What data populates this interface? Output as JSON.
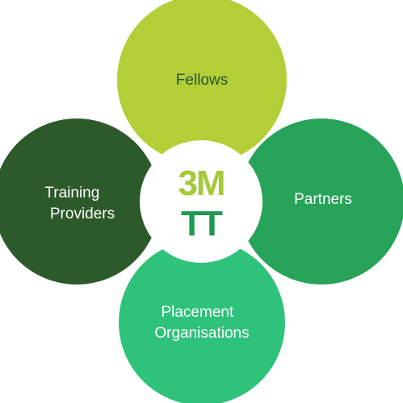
{
  "diagram": {
    "petals": {
      "top": {
        "label_lines": [
          "Fellows"
        ],
        "color": "#b3cf38",
        "text_color": "#2f4f2f"
      },
      "right": {
        "label_lines": [
          "Partners"
        ],
        "color": "#27a35a",
        "text_color": "#ffffff"
      },
      "bottom": {
        "label_lines": [
          "Placement",
          "Organisations"
        ],
        "color": "#2ec27a",
        "text_color": "#ffffff"
      },
      "left": {
        "label_lines": [
          "Training",
          "Providers"
        ],
        "color": "#2d5a2a",
        "text_color": "#ffffff"
      }
    },
    "center": {
      "logo_top": "3M",
      "logo_bottom": "TT",
      "logo_top_color": "#a6c93a",
      "logo_bottom_color": "#1f9a52",
      "ring_color": "#ffffff"
    }
  }
}
